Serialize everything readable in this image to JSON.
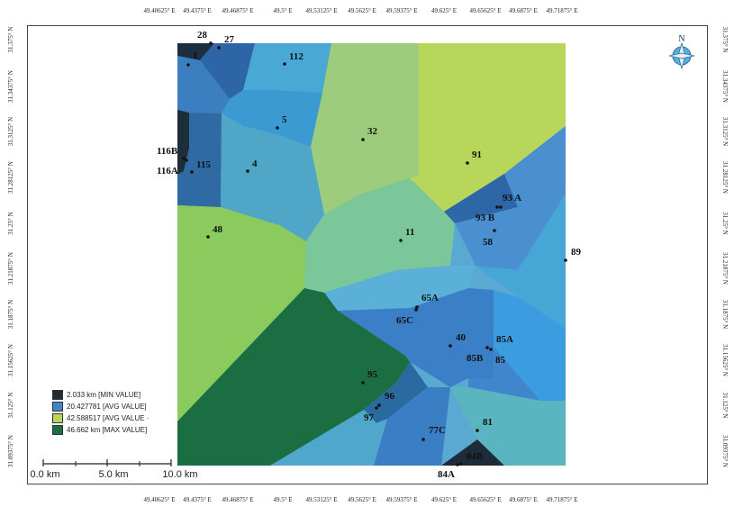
{
  "axis": {
    "top_ticks": [
      "49.40625° E",
      "49.4375° E",
      "49.46875° E",
      "49.5° E",
      "49.53125° E",
      "49.5625° E",
      "49.59375° E",
      "49.625° E",
      "49.65625° E",
      "49.6875° E",
      "49.71875° E"
    ],
    "bottom_ticks": [
      "49.40625° E",
      "49.4375° E",
      "49.46875° E",
      "49.5° E",
      "49.53125° E",
      "49.5625° E",
      "49.59375° E",
      "49.625° E",
      "49.65625° E",
      "49.6875° E",
      "49.71875° E"
    ],
    "left_ticks": [
      "31.375° N",
      "31.34375° N",
      "31.3125° N",
      "31.28125° N",
      "31.25° N",
      "31.21875° N",
      "31.1875° N",
      "31.15625° N",
      "31.125° N",
      "31.09375° N"
    ],
    "right_ticks": [
      "31.375° N",
      "31.34375° N",
      "31.3125° N",
      "31.28125° N",
      "31.25° N",
      "31.21875° N",
      "31.1875° N",
      "31.15625° N",
      "31.125° N",
      "31.09375° N"
    ]
  },
  "north_arrow": {
    "label": "N",
    "icon": "north-arrow-icon"
  },
  "legend": [
    {
      "label": "2.033 km [MIN VALUE]",
      "color": "#1f2a33"
    },
    {
      "label": "20.427781 [AVG VALUE]",
      "color": "#3f86c8"
    },
    {
      "label": "42.588517 [AVG VALUE ·",
      "color": "#b8d65a"
    },
    {
      "label": "46.662 km [MAX VALUE]",
      "color": "#1b6e42"
    }
  ],
  "scale_bar": {
    "labels": [
      "0.0 km",
      "5.0 km",
      "10.0 km"
    ]
  },
  "wells": [
    {
      "label": "1"
    },
    {
      "label": "28"
    },
    {
      "label": "27"
    },
    {
      "label": "112"
    },
    {
      "label": "5"
    },
    {
      "label": "32"
    },
    {
      "label": "91"
    },
    {
      "label": "116B"
    },
    {
      "label": "116A"
    },
    {
      "label": "115"
    },
    {
      "label": "4"
    },
    {
      "label": "93 A"
    },
    {
      "label": "93 B"
    },
    {
      "label": "58"
    },
    {
      "label": "48"
    },
    {
      "label": "11"
    },
    {
      "label": "89"
    },
    {
      "label": "65A"
    },
    {
      "label": "65C"
    },
    {
      "label": "40"
    },
    {
      "label": "85A"
    },
    {
      "label": "85B"
    },
    {
      "label": "85"
    },
    {
      "label": "95"
    },
    {
      "label": "96"
    },
    {
      "label": "97"
    },
    {
      "label": "81"
    },
    {
      "label": "77C"
    },
    {
      "label": "84B"
    },
    {
      "label": "84A"
    }
  ]
}
